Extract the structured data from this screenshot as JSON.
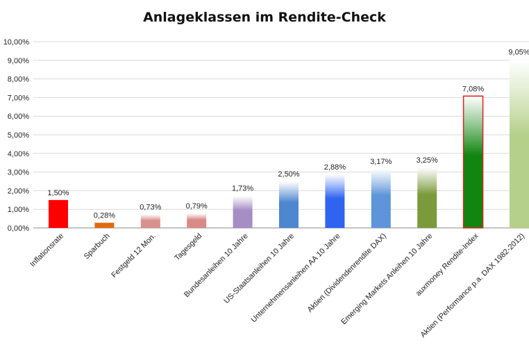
{
  "chart_data": {
    "type": "bar",
    "title": "Anlageklassen im Rendite-Check",
    "xlabel": "",
    "ylabel": "",
    "ylim": [
      0,
      10
    ],
    "yticks": [
      "0,00%",
      "1,00%",
      "2,00%",
      "3,00%",
      "4,00%",
      "5,00%",
      "6,00%",
      "7,00%",
      "8,00%",
      "9,00%",
      "10,00%"
    ],
    "grid": true,
    "categories": [
      "Inflationsrate",
      "Sparbuch",
      "Festgeld 12 Mon.",
      "Tagesgeld",
      "Bundesanleihen 10 Jahre",
      "US-Staatsanleihen 10 Jahre",
      "Unternehmensanleihen AA 10 Jahre",
      "Aktien (Dividendenrendite DAX)",
      "Emerging Markets Anleihen 10 Jahre",
      "auxmoney Rendite-Index",
      "Aktien (Performance p.a. DAX 1982-2012)"
    ],
    "values": [
      1.5,
      0.28,
      0.73,
      0.79,
      1.73,
      2.5,
      2.88,
      3.17,
      3.25,
      7.08,
      9.05
    ],
    "data_labels": [
      "1,50%",
      "0,28%",
      "0,73%",
      "0,79%",
      "1,73%",
      "2,50%",
      "2,88%",
      "3,17%",
      "3,25%",
      "7,08%",
      "9,05%"
    ],
    "colors": [
      "#ff0000",
      "#e06a10",
      "#d9908f",
      "#d98a86",
      "#a58ec4",
      "#4e86d0",
      "#2e64f0",
      "#5d95d8",
      "#7a9a3c",
      "#108510",
      "#b5d08a"
    ],
    "label_colors": [
      "#ff0000",
      "#222222",
      "#222222",
      "#222222",
      "#222222",
      "#222222",
      "#222222",
      "#222222",
      "#222222",
      "#222222",
      "#222222"
    ]
  }
}
